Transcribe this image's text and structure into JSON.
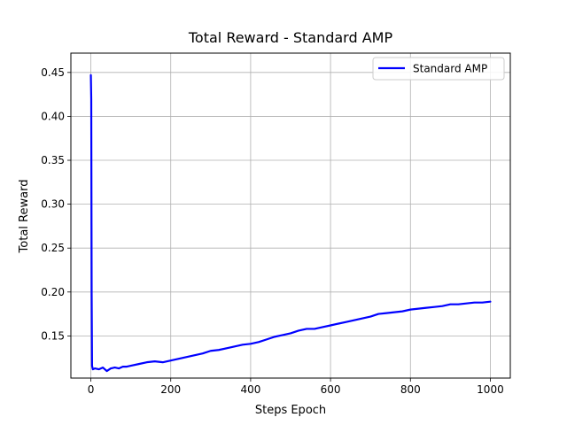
{
  "chart_data": {
    "type": "line",
    "title": "Total Reward - Standard AMP",
    "xlabel": "Steps Epoch",
    "ylabel": "Total Reward",
    "xlim": [
      -50,
      1050
    ],
    "ylim": [
      0.102,
      0.472
    ],
    "xticks": [
      0,
      200,
      400,
      600,
      800,
      1000
    ],
    "xtick_labels": [
      "0",
      "200",
      "400",
      "600",
      "800",
      "1000"
    ],
    "yticks": [
      0.15,
      0.2,
      0.25,
      0.3,
      0.35,
      0.4,
      0.45
    ],
    "ytick_labels": [
      "0.15",
      "0.20",
      "0.25",
      "0.30",
      "0.35",
      "0.40",
      "0.45"
    ],
    "grid": true,
    "legend_position": "top-right",
    "series": [
      {
        "name": "Standard AMP",
        "color": "#0000ff",
        "x": [
          0,
          1,
          2,
          3,
          5,
          10,
          20,
          30,
          40,
          50,
          60,
          70,
          80,
          90,
          100,
          120,
          140,
          160,
          180,
          200,
          220,
          240,
          260,
          280,
          300,
          320,
          340,
          360,
          380,
          400,
          420,
          440,
          460,
          480,
          500,
          520,
          540,
          560,
          580,
          600,
          620,
          640,
          660,
          680,
          700,
          720,
          740,
          760,
          780,
          800,
          820,
          840,
          860,
          880,
          900,
          920,
          940,
          960,
          980,
          1000
        ],
        "y": [
          0.447,
          0.42,
          0.2,
          0.116,
          0.112,
          0.113,
          0.112,
          0.114,
          0.11,
          0.113,
          0.114,
          0.113,
          0.115,
          0.115,
          0.116,
          0.118,
          0.12,
          0.121,
          0.12,
          0.122,
          0.124,
          0.126,
          0.128,
          0.13,
          0.133,
          0.134,
          0.136,
          0.138,
          0.14,
          0.141,
          0.143,
          0.146,
          0.149,
          0.151,
          0.153,
          0.156,
          0.158,
          0.158,
          0.16,
          0.162,
          0.164,
          0.166,
          0.168,
          0.17,
          0.172,
          0.175,
          0.176,
          0.177,
          0.178,
          0.18,
          0.181,
          0.182,
          0.183,
          0.184,
          0.186,
          0.186,
          0.187,
          0.188,
          0.188,
          0.189
        ]
      }
    ]
  }
}
